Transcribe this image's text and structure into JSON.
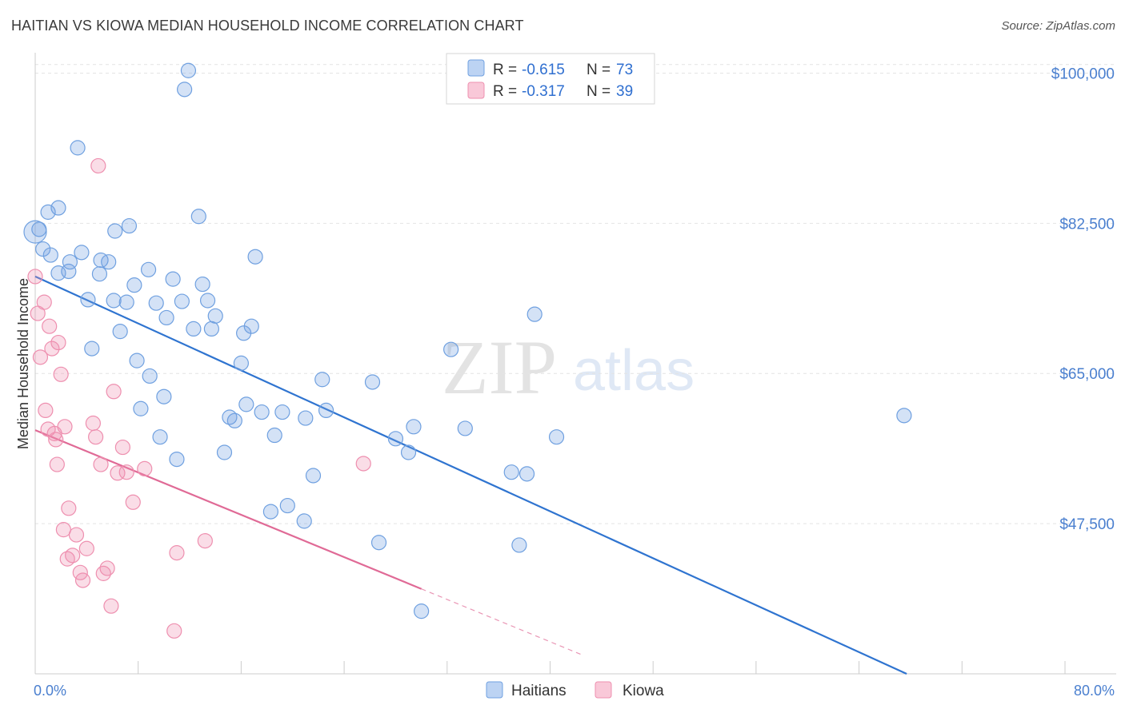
{
  "header": {
    "title": "HAITIAN VS KIOWA MEDIAN HOUSEHOLD INCOME CORRELATION CHART",
    "source": "Source: ZipAtlas.com"
  },
  "watermark": {
    "zip": "ZIP",
    "atlas": "atlas"
  },
  "chart_data": {
    "type": "scatter",
    "title": "HAITIAN VS KIOWA MEDIAN HOUSEHOLD INCOME CORRELATION CHART",
    "xlabel": "",
    "ylabel": "Median Household Income",
    "xlim": [
      0,
      80
    ],
    "ylim": [
      30000,
      102000
    ],
    "x_tick_labels": [
      "0.0%",
      "80.0%"
    ],
    "y_ticks": [
      {
        "value": 100000,
        "label": "$100,000"
      },
      {
        "value": 82500,
        "label": "$82,500"
      },
      {
        "value": 65000,
        "label": "$65,000"
      },
      {
        "value": 47500,
        "label": "$47,500"
      }
    ],
    "grid": true,
    "legend_position": "top-center",
    "stats": [
      {
        "r_label": "R =",
        "r_value": "-0.615",
        "n_label": "N =",
        "n_value": "73",
        "color": "#6fa0e0"
      },
      {
        "r_label": "R =",
        "r_value": "-0.317",
        "n_label": "N =",
        "n_value": "39",
        "color": "#ee8faf"
      }
    ],
    "series": [
      {
        "name": "Haitians",
        "color": "#6fa0e0",
        "trend": {
          "x": [
            0,
            67.7
          ],
          "y": [
            76300,
            30000
          ]
        },
        "points": [
          [
            0,
            81500
          ],
          [
            0.3,
            81800
          ],
          [
            0.6,
            79500
          ],
          [
            1.0,
            83800
          ],
          [
            1.2,
            78800
          ],
          [
            1.8,
            84300
          ],
          [
            1.8,
            76700
          ],
          [
            2.6,
            76900
          ],
          [
            3.3,
            91300
          ],
          [
            3.6,
            79100
          ],
          [
            2.7,
            78000
          ],
          [
            4.1,
            73600
          ],
          [
            4.4,
            67900
          ],
          [
            5.0,
            76600
          ],
          [
            5.1,
            78200
          ],
          [
            5.7,
            78000
          ],
          [
            6.1,
            73500
          ],
          [
            6.2,
            81600
          ],
          [
            6.6,
            69900
          ],
          [
            7.1,
            73300
          ],
          [
            7.3,
            82200
          ],
          [
            7.7,
            75300
          ],
          [
            7.9,
            66500
          ],
          [
            8.2,
            60900
          ],
          [
            8.8,
            77100
          ],
          [
            8.9,
            64700
          ],
          [
            9.4,
            73200
          ],
          [
            9.7,
            57600
          ],
          [
            10.0,
            62300
          ],
          [
            10.2,
            71500
          ],
          [
            10.7,
            76000
          ],
          [
            11.0,
            55000
          ],
          [
            11.4,
            73400
          ],
          [
            11.6,
            98100
          ],
          [
            11.9,
            100300
          ],
          [
            12.3,
            70200
          ],
          [
            12.7,
            83300
          ],
          [
            13.0,
            75400
          ],
          [
            13.4,
            73500
          ],
          [
            13.7,
            70200
          ],
          [
            14.0,
            71700
          ],
          [
            14.7,
            55800
          ],
          [
            15.1,
            59900
          ],
          [
            15.5,
            59500
          ],
          [
            16.0,
            66200
          ],
          [
            16.2,
            69700
          ],
          [
            16.4,
            61400
          ],
          [
            16.8,
            70500
          ],
          [
            17.1,
            78600
          ],
          [
            17.6,
            60500
          ],
          [
            18.3,
            48900
          ],
          [
            18.6,
            57800
          ],
          [
            19.2,
            60500
          ],
          [
            19.6,
            49600
          ],
          [
            20.9,
            47800
          ],
          [
            21.6,
            53100
          ],
          [
            22.3,
            64300
          ],
          [
            22.6,
            60700
          ],
          [
            26.2,
            64000
          ],
          [
            26.7,
            45300
          ],
          [
            28.0,
            57400
          ],
          [
            29.4,
            58800
          ],
          [
            30.0,
            37300
          ],
          [
            32.3,
            67800
          ],
          [
            33.4,
            58600
          ],
          [
            37.0,
            53500
          ],
          [
            37.6,
            45000
          ],
          [
            38.2,
            53300
          ],
          [
            38.8,
            71900
          ],
          [
            40.5,
            57600
          ],
          [
            67.5,
            60100
          ],
          [
            29.0,
            55800
          ],
          [
            21.0,
            59800
          ]
        ]
      },
      {
        "name": "Kiowa",
        "color": "#ee8faf",
        "trend": {
          "x": [
            0,
            30
          ],
          "y": [
            58400,
            39900
          ]
        },
        "trend_extension": {
          "x": [
            30,
            42.5
          ],
          "y": [
            39900,
            32200
          ]
        },
        "points": [
          [
            0,
            76300
          ],
          [
            0.2,
            72000
          ],
          [
            0.4,
            66900
          ],
          [
            0.7,
            73300
          ],
          [
            0.8,
            60700
          ],
          [
            1.0,
            58500
          ],
          [
            1.1,
            70500
          ],
          [
            1.3,
            67900
          ],
          [
            1.5,
            58000
          ],
          [
            1.6,
            57300
          ],
          [
            1.7,
            54400
          ],
          [
            1.8,
            68600
          ],
          [
            2.0,
            64900
          ],
          [
            2.2,
            46800
          ],
          [
            2.3,
            58800
          ],
          [
            2.5,
            43400
          ],
          [
            2.6,
            49300
          ],
          [
            2.9,
            43800
          ],
          [
            3.2,
            46200
          ],
          [
            3.5,
            41800
          ],
          [
            3.7,
            40900
          ],
          [
            4.0,
            44600
          ],
          [
            4.5,
            59200
          ],
          [
            4.7,
            57600
          ],
          [
            4.9,
            89200
          ],
          [
            5.1,
            54400
          ],
          [
            5.3,
            41700
          ],
          [
            5.6,
            42300
          ],
          [
            5.9,
            37900
          ],
          [
            6.1,
            62900
          ],
          [
            6.4,
            53400
          ],
          [
            6.8,
            56400
          ],
          [
            7.1,
            53500
          ],
          [
            7.6,
            50000
          ],
          [
            8.5,
            53900
          ],
          [
            10.8,
            35000
          ],
          [
            11.0,
            44100
          ],
          [
            13.2,
            45500
          ],
          [
            25.5,
            54500
          ]
        ]
      }
    ]
  },
  "bottom_legend": [
    {
      "label": "Haitians",
      "color": "#6fa0e0"
    },
    {
      "label": "Kiowa",
      "color": "#ee8faf"
    }
  ]
}
